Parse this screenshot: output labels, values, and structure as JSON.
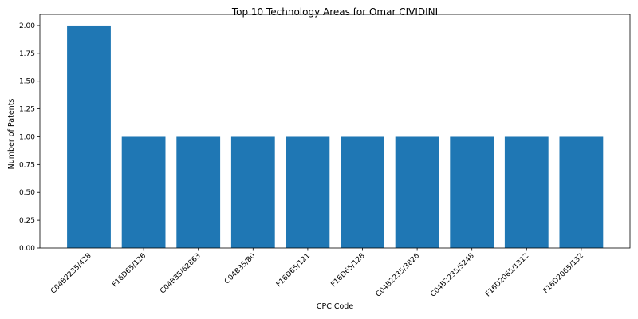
{
  "chart_data": {
    "type": "bar",
    "title": "Top 10 Technology Areas for Omar CIVIDINI",
    "xlabel": "CPC Code",
    "ylabel": "Number of Patents",
    "categories": [
      "C04B2235/428",
      "F16D65/126",
      "C04B35/62863",
      "C04B35/80",
      "F16D65/121",
      "F16D65/128",
      "C04B2235/3826",
      "C04B2235/5248",
      "F16D2065/1312",
      "F16D2065/132"
    ],
    "values": [
      2,
      1,
      1,
      1,
      1,
      1,
      1,
      1,
      1,
      1
    ],
    "ylim": [
      0,
      2.1
    ],
    "yticks": [
      "0.00",
      "0.25",
      "0.50",
      "0.75",
      "1.00",
      "1.25",
      "1.50",
      "1.75",
      "2.00"
    ],
    "bar_color": "#1f77b4",
    "grid": false,
    "legend": "none"
  }
}
